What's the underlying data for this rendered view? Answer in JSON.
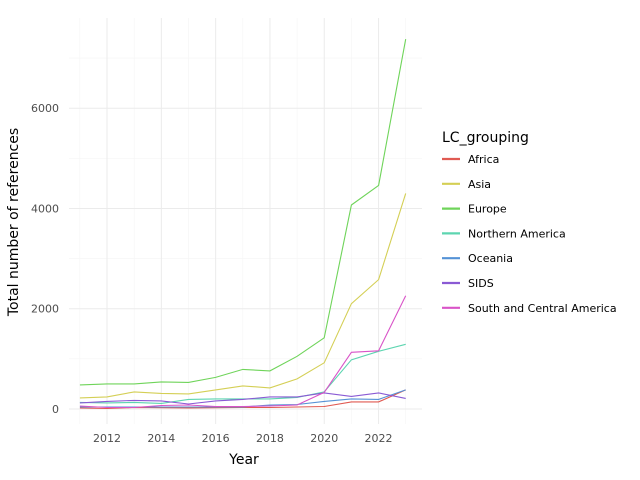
{
  "chart_data": {
    "type": "line",
    "title": "",
    "xlabel": "Year",
    "ylabel": "Total number of references",
    "xlim": [
      2010.6,
      2023.6
    ],
    "ylim": [
      -300,
      7800
    ],
    "x_ticks": [
      2012,
      2014,
      2016,
      2018,
      2020,
      2022
    ],
    "x_tick_labels": [
      "2012",
      "2014",
      "2016",
      "2018",
      "2020",
      "2022"
    ],
    "y_ticks": [
      0,
      2000,
      4000,
      6000
    ],
    "y_tick_labels": [
      "0",
      "2000",
      "4000",
      "6000"
    ],
    "grid": true,
    "legend_title": "LC_grouping",
    "legend_position": "right",
    "x": [
      2011,
      2012,
      2013,
      2014,
      2015,
      2016,
      2017,
      2018,
      2019,
      2020,
      2021,
      2022,
      2023
    ],
    "series": [
      {
        "name": "Africa",
        "color": "#e05a52",
        "values": [
          20,
          10,
          30,
          25,
          20,
          25,
          30,
          30,
          40,
          50,
          140,
          140,
          380
        ]
      },
      {
        "name": "Asia",
        "color": "#d4cf55",
        "values": [
          220,
          240,
          340,
          310,
          300,
          380,
          460,
          420,
          600,
          920,
          2100,
          2580,
          4300
        ]
      },
      {
        "name": "Europe",
        "color": "#6fd45a",
        "values": [
          480,
          500,
          500,
          540,
          530,
          630,
          790,
          760,
          1050,
          1420,
          4070,
          4460,
          7380
        ]
      },
      {
        "name": "Northern America",
        "color": "#5dd5b0",
        "values": [
          130,
          120,
          130,
          110,
          190,
          200,
          200,
          200,
          230,
          340,
          980,
          1150,
          1290
        ]
      },
      {
        "name": "Oceania",
        "color": "#5592d6",
        "values": [
          40,
          40,
          40,
          40,
          40,
          40,
          40,
          80,
          90,
          150,
          200,
          190,
          380
        ]
      },
      {
        "name": "SIDS",
        "color": "#8a5ad4",
        "values": [
          120,
          150,
          170,
          160,
          100,
          160,
          190,
          240,
          240,
          320,
          250,
          320,
          210
        ]
      },
      {
        "name": "South and Central America",
        "color": "#d954c8",
        "values": [
          60,
          30,
          30,
          70,
          80,
          50,
          50,
          60,
          80,
          330,
          1130,
          1160,
          2260
        ]
      }
    ]
  }
}
